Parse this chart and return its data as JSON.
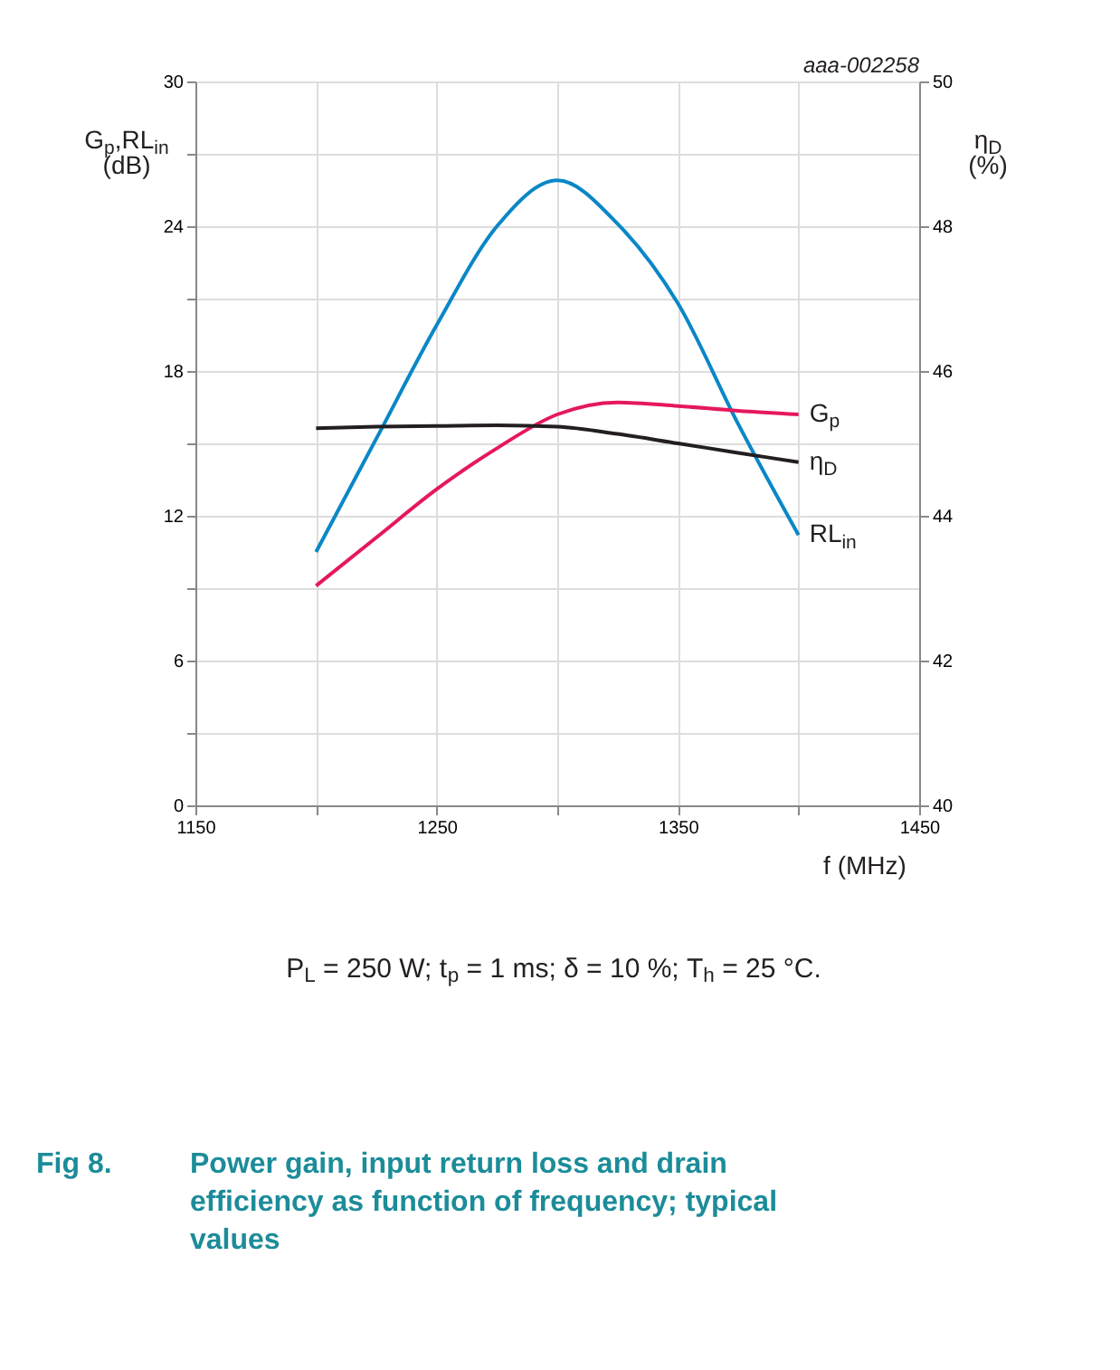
{
  "chart_data": {
    "type": "line",
    "title": "Fig 8.    Power gain, input return loss and drain efficiency as function of frequency; typical values",
    "xlabel": "f (MHz)",
    "ylabel": "G$_{p}$,RL$_{in}$ (dB)",
    "y2label": "η$_{D}$ (%)",
    "x": [
      1200,
      1225,
      1250,
      1275,
      1300,
      1325,
      1350,
      1375,
      1400
    ],
    "series": [
      {
        "name": "RL$_{in}$",
        "color": "#0a87c6",
        "values": [
          10.5,
          15.2,
          19.9,
          24.0,
          25.9,
          24.1,
          20.8,
          15.8,
          11.2
        ]
      },
      {
        "name": "G$_{p}$",
        "color": "#e6185c",
        "values": [
          9.1,
          11.1,
          13.1,
          14.8,
          16.2,
          16.7,
          16.55,
          16.35,
          16.2
        ]
      },
      {
        "name": "η$_{D}$",
        "color": "#231f20",
        "axis": "y2",
        "values": [
          45.21,
          45.23,
          45.24,
          45.25,
          45.23,
          45.13,
          45.0,
          44.87,
          44.74
        ]
      }
    ],
    "xlim": [
      1150,
      1450
    ],
    "xticks": [
      1150,
      {
        "value": 1200,
        "label": null
      },
      1250,
      {
        "value": 1300,
        "label": null
      },
      1350,
      {
        "value": 1400,
        "label": null
      },
      1450
    ],
    "ylim": [
      0,
      30
    ],
    "yticks": [
      0,
      {
        "value": 3,
        "label": null
      },
      6,
      {
        "value": 9,
        "label": null
      },
      12,
      {
        "value": 15,
        "label": null
      },
      18,
      {
        "value": 21,
        "label": null
      },
      24,
      {
        "value": 27,
        "label": null
      },
      30
    ],
    "y2lim": [
      40,
      50
    ],
    "y2ticks": [
      40,
      42,
      44,
      46,
      48,
      50
    ],
    "grid": true,
    "marker": "none",
    "line_style": "solid",
    "annotations": [
      "aaa-002258",
      "P$_{L}$ = 250 W; t$_{p}$ = 1 ms; δ = 10 %; T$_{h}$ = 25 °C."
    ]
  }
}
